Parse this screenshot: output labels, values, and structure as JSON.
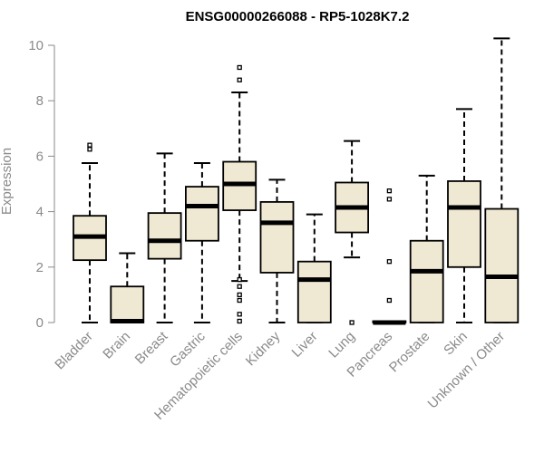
{
  "chart_data": {
    "type": "box",
    "title": "ENSG00000266088 - RP5-1028K7.2",
    "xlabel": "",
    "ylabel": "Expression",
    "ylim": [
      0,
      10.5
    ],
    "yticks": [
      0,
      2,
      4,
      6,
      8,
      10
    ],
    "colors": {
      "box_fill": "#efe8d2",
      "box_stroke": "#000000",
      "axis": "#8a8a8a",
      "text": "#8a8a8a"
    },
    "categories": [
      "Bladder",
      "Brain",
      "Breast",
      "Gastric",
      "Hematopoietic cells",
      "Kidney",
      "Liver",
      "Lung",
      "Pancreas",
      "Prostate",
      "Skin",
      "Unknown / Other"
    ],
    "boxes": [
      {
        "name": "Bladder",
        "whisker_low": 0,
        "q1": 2.25,
        "median": 3.1,
        "q3": 3.85,
        "whisker_high": 5.75,
        "outliers": [
          6.25,
          6.4
        ]
      },
      {
        "name": "Brain",
        "whisker_low": 0,
        "q1": 0,
        "median": 0.05,
        "q3": 1.3,
        "whisker_high": 2.5,
        "outliers": []
      },
      {
        "name": "Breast",
        "whisker_low": 0,
        "q1": 2.3,
        "median": 2.95,
        "q3": 3.95,
        "whisker_high": 6.1,
        "outliers": []
      },
      {
        "name": "Gastric",
        "whisker_low": 0,
        "q1": 2.95,
        "median": 4.2,
        "q3": 4.9,
        "whisker_high": 5.75,
        "outliers": []
      },
      {
        "name": "Hematopoietic cells",
        "whisker_low": 1.5,
        "q1": 4.05,
        "median": 5.0,
        "q3": 5.8,
        "whisker_high": 8.3,
        "outliers": [
          0.05,
          0.3,
          0.8,
          1.0,
          1.3,
          1.55,
          8.75,
          9.2
        ]
      },
      {
        "name": "Kidney",
        "whisker_low": 0,
        "q1": 1.8,
        "median": 3.6,
        "q3": 4.35,
        "whisker_high": 5.15,
        "outliers": []
      },
      {
        "name": "Liver",
        "whisker_low": 0,
        "q1": 0,
        "median": 1.55,
        "q3": 2.2,
        "whisker_high": 3.9,
        "outliers": []
      },
      {
        "name": "Lung",
        "whisker_low": 2.35,
        "q1": 3.25,
        "median": 4.15,
        "q3": 5.05,
        "whisker_high": 6.55,
        "outliers": [
          0.0
        ]
      },
      {
        "name": "Pancreas",
        "whisker_low": 0,
        "q1": 0,
        "median": 0.0,
        "q3": 0.05,
        "whisker_high": 0.05,
        "outliers": [
          0.8,
          2.2,
          4.45,
          4.75
        ]
      },
      {
        "name": "Prostate",
        "whisker_low": 0,
        "q1": 0,
        "median": 1.85,
        "q3": 2.95,
        "whisker_high": 5.3,
        "outliers": []
      },
      {
        "name": "Skin",
        "whisker_low": 0,
        "q1": 2.0,
        "median": 4.15,
        "q3": 5.1,
        "whisker_high": 7.7,
        "outliers": []
      },
      {
        "name": "Unknown / Other",
        "whisker_low": 0,
        "q1": 0,
        "median": 1.65,
        "q3": 4.1,
        "whisker_high": 10.25,
        "outliers": []
      }
    ]
  }
}
